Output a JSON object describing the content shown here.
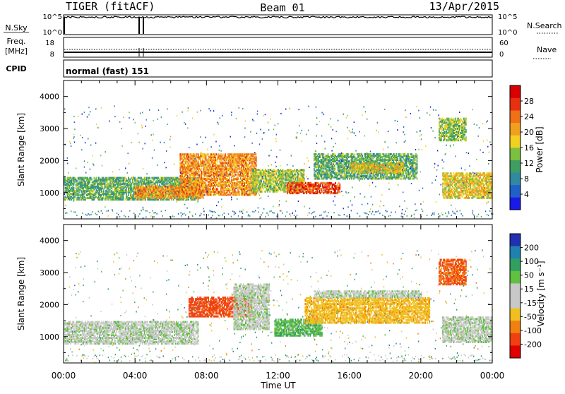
{
  "header": {
    "radar": "TIGER (fitACF)",
    "beam": "Beam 01",
    "date": "13/Apr/2015"
  },
  "nsky_panel": {
    "left_label": "N.Sky",
    "left_ticks": [
      "10^5",
      "10^0"
    ],
    "right_ticks": [
      "10^5",
      "10^0"
    ],
    "right_label": "N.Search"
  },
  "freq_panel": {
    "left_label_1": "Freq.",
    "left_label_2": "[MHz]",
    "left_ticks": [
      "18",
      "8"
    ],
    "right_ticks": [
      "60",
      "0"
    ],
    "right_label": "Nave"
  },
  "cpid": {
    "label": "CPID",
    "mode": "normal (fast) 151"
  },
  "chart_data": [
    {
      "type": "heatmap",
      "quantity": "Power",
      "ylabel": "Slant Range [km]",
      "ylim": [
        180,
        4500
      ],
      "yticks": [
        "1000",
        "2000",
        "3000",
        "4000"
      ],
      "xlim": [
        "00:00",
        "24:00"
      ],
      "colorbar": {
        "label": "Power [dB]",
        "range": [
          0,
          32
        ],
        "tick_labels": [
          "4",
          "8",
          "12",
          "16",
          "20",
          "24",
          "28"
        ],
        "colors": [
          "#1a1ae8",
          "#2060c8",
          "#2f8aa0",
          "#3f9e60",
          "#7cc040",
          "#f0d020",
          "#f0a020",
          "#f07018",
          "#e83010",
          "#d80000"
        ]
      },
      "echo_regions": [
        {
          "t_start": 0.0,
          "t_end": 7.5,
          "range_min": 750,
          "range_max": 1450,
          "level": 12
        },
        {
          "t_start": 4.0,
          "t_end": 7.8,
          "range_min": 800,
          "range_max": 1200,
          "level": 22
        },
        {
          "t_start": 6.5,
          "t_end": 10.8,
          "range_min": 900,
          "range_max": 2200,
          "level": 22
        },
        {
          "t_start": 10.5,
          "t_end": 13.5,
          "range_min": 1000,
          "range_max": 1700,
          "level": 15
        },
        {
          "t_start": 12.5,
          "t_end": 15.5,
          "range_min": 950,
          "range_max": 1300,
          "level": 26
        },
        {
          "t_start": 14.0,
          "t_end": 19.8,
          "range_min": 1400,
          "range_max": 2200,
          "level": 12
        },
        {
          "t_start": 16.0,
          "t_end": 19.0,
          "range_min": 1600,
          "range_max": 1900,
          "level": 18
        },
        {
          "t_start": 21.2,
          "t_end": 24.0,
          "range_min": 800,
          "range_max": 1600,
          "level": 18
        },
        {
          "t_start": 21.0,
          "t_end": 22.5,
          "range_min": 2600,
          "range_max": 3300,
          "level": 14
        }
      ]
    },
    {
      "type": "heatmap",
      "quantity": "Velocity",
      "ylabel": "Slant Range [km]",
      "ylim": [
        180,
        4500
      ],
      "yticks": [
        "1000",
        "2000",
        "3000",
        "4000"
      ],
      "xlabel": "Time UT",
      "xlim": [
        "00:00",
        "24:00"
      ],
      "xtick_labels": [
        "00:00",
        "04:00",
        "08:00",
        "12:00",
        "16:00",
        "20:00",
        "00:00"
      ],
      "colorbar": {
        "label": "Velocity [m s⁻¹]",
        "range": [
          -250,
          250
        ],
        "tick_labels": [
          "200",
          "100",
          "50",
          "15",
          "-15",
          "-50",
          "-100",
          "-200"
        ],
        "colors": [
          "#2030b0",
          "#2080b0",
          "#30a060",
          "#60c040",
          "#c8c8c8",
          "#c8c8c8",
          "#f0c020",
          "#f08010",
          "#f04010",
          "#e00000"
        ]
      },
      "echo_regions": [
        {
          "t_start": 0.0,
          "t_end": 7.5,
          "range_min": 750,
          "range_max": 1450,
          "velocity": 0
        },
        {
          "t_start": 7.0,
          "t_end": 10.5,
          "range_min": 1600,
          "range_max": 2200,
          "velocity": -220
        },
        {
          "t_start": 9.5,
          "t_end": 11.5,
          "range_min": 1200,
          "range_max": 2600,
          "velocity": 0
        },
        {
          "t_start": 11.8,
          "t_end": 14.5,
          "range_min": 1000,
          "range_max": 1500,
          "velocity": 40
        },
        {
          "t_start": 13.5,
          "t_end": 20.5,
          "range_min": 1400,
          "range_max": 2200,
          "velocity": -80
        },
        {
          "t_start": 14.0,
          "t_end": 20.0,
          "range_min": 2200,
          "range_max": 2400,
          "velocity": 0
        },
        {
          "t_start": 21.2,
          "t_end": 24.0,
          "range_min": 800,
          "range_max": 1600,
          "velocity": 0
        },
        {
          "t_start": 21.0,
          "t_end": 22.5,
          "range_min": 2600,
          "range_max": 3400,
          "velocity": -200
        }
      ]
    }
  ]
}
